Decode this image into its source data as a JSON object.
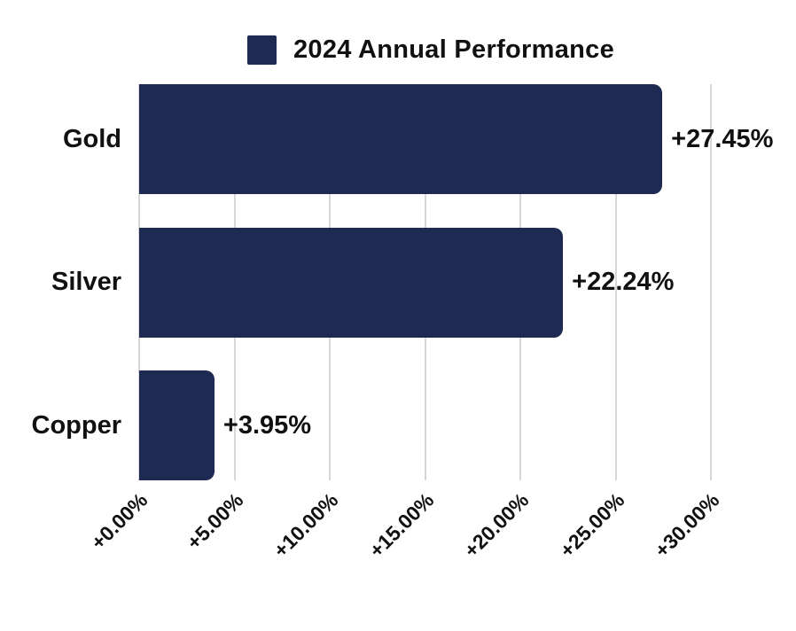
{
  "legend": {
    "title": "2024 Annual Performance",
    "swatch_color": "#1f2a52"
  },
  "chart_data": {
    "type": "bar",
    "orientation": "horizontal",
    "title": "2024 Annual Performance",
    "categories": [
      "Gold",
      "Silver",
      "Copper"
    ],
    "values": [
      27.45,
      22.24,
      3.95
    ],
    "value_labels": [
      "+27.45%",
      "+22.24%",
      "+3.95%"
    ],
    "x_ticks": [
      0,
      5,
      10,
      15,
      20,
      25,
      30
    ],
    "x_tick_labels": [
      "+0.00%",
      "+5.00%",
      "+10.00%",
      "+15.00%",
      "+20.00%",
      "+25.00%",
      "+30.00%"
    ],
    "xlim": [
      0,
      30
    ],
    "bar_color": "#1f2a52",
    "text_color": "#111111",
    "grid": true,
    "gridline_color": "#d7d7d7",
    "legend_position": "top"
  }
}
